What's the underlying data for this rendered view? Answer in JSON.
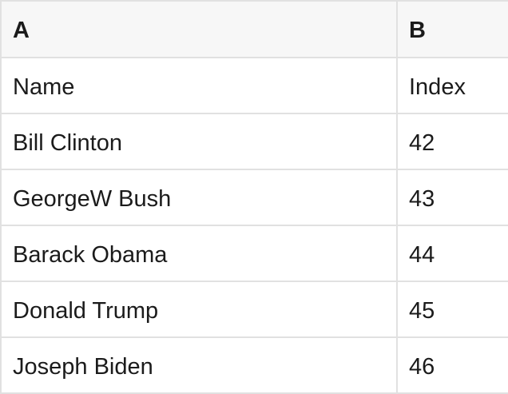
{
  "table": {
    "type": "spreadsheet-preview",
    "column_headers": {
      "a": "A",
      "b": "B"
    },
    "rows": [
      {
        "cells": {
          "a": "Name",
          "b": "Index"
        }
      },
      {
        "cells": {
          "a": "Bill Clinton",
          "b": "42"
        }
      },
      {
        "cells": {
          "a": "GeorgeW Bush",
          "b": "43"
        }
      },
      {
        "cells": {
          "a": "Barack Obama",
          "b": "44"
        }
      },
      {
        "cells": {
          "a": "Donald Trump",
          "b": "45"
        }
      },
      {
        "cells": {
          "a": "Joseph Biden",
          "b": "46"
        }
      }
    ]
  },
  "colors": {
    "header_background": "#f7f7f7",
    "grid_border": "#e1e1e1",
    "text": "#1b1b1b",
    "row_background": "#ffffff"
  }
}
